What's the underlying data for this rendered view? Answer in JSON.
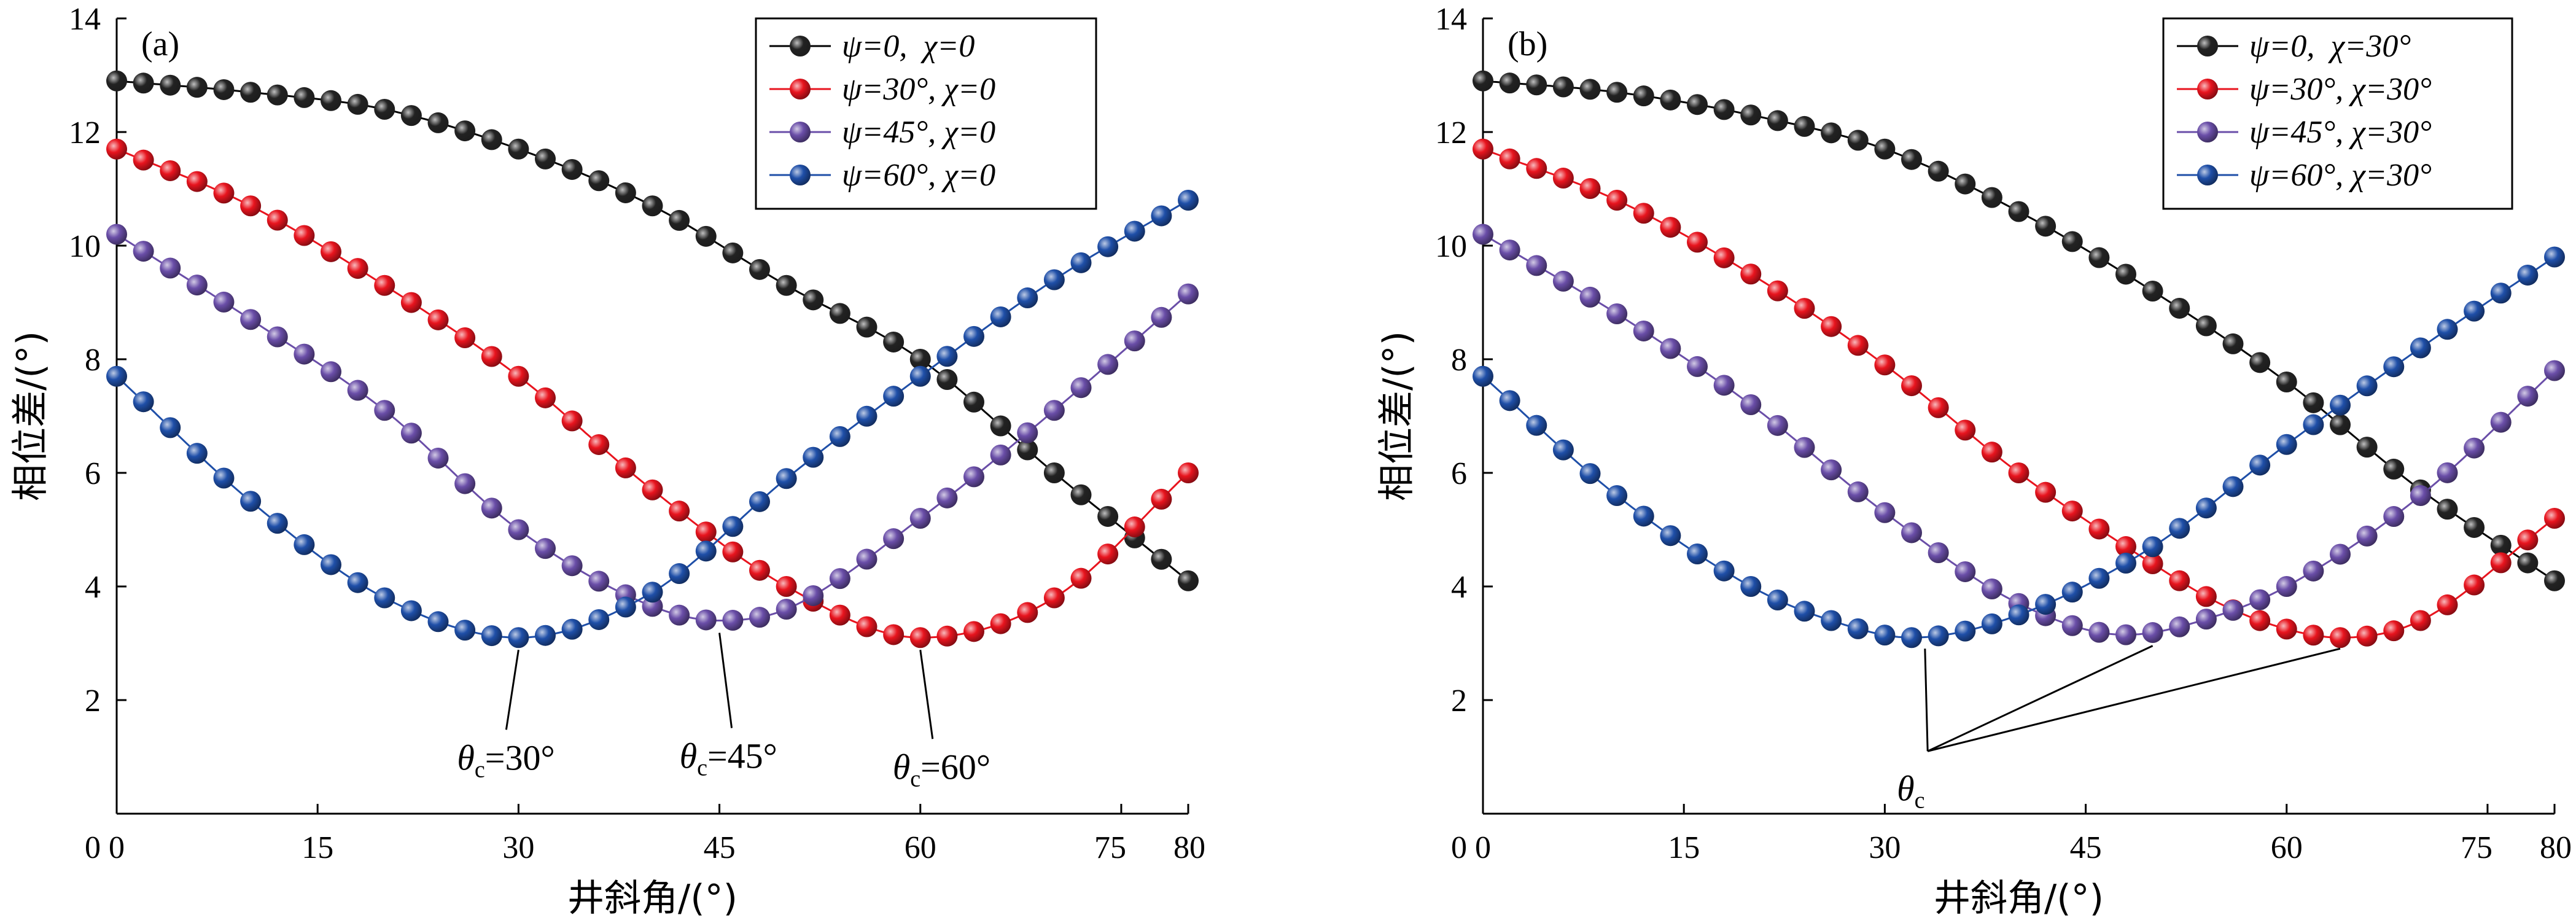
{
  "chart_data": [
    {
      "type": "line",
      "panel_label": "(a)",
      "xlabel": "井斜角/(°)",
      "ylabel": "相位差/(°)",
      "xlim": [
        0,
        80
      ],
      "ylim": [
        0,
        14
      ],
      "xticks": [
        0,
        15,
        30,
        45,
        60,
        75,
        80
      ],
      "yticks": [
        2,
        4,
        6,
        8,
        10,
        12,
        14
      ],
      "grid": false,
      "legend_position": "top-right",
      "markers": "spheres",
      "series": [
        {
          "name": "ψ=0,  χ=0",
          "color": "#000000",
          "x": [
            0,
            10,
            20,
            30,
            40,
            50,
            60,
            70,
            80
          ],
          "y": [
            12.9,
            12.7,
            12.4,
            11.7,
            10.7,
            9.3,
            8.0,
            6.0,
            4.1
          ]
        },
        {
          "name": "ψ=30°, χ=0",
          "color": "#e8141e",
          "x": [
            0,
            10,
            20,
            30,
            40,
            50,
            60,
            70,
            80
          ],
          "y": [
            11.7,
            10.7,
            9.3,
            7.7,
            5.7,
            4.0,
            3.1,
            3.8,
            6.0
          ]
        },
        {
          "name": "ψ=45°, χ=0",
          "color": "#6a4ea8",
          "x": [
            0,
            10,
            20,
            30,
            40,
            45,
            50,
            60,
            70,
            80
          ],
          "y": [
            10.2,
            8.7,
            7.1,
            5.0,
            3.65,
            3.4,
            3.6,
            5.2,
            7.1,
            9.15
          ]
        },
        {
          "name": "ψ=60°, χ=0",
          "color": "#1f4fa8",
          "x": [
            0,
            10,
            20,
            30,
            40,
            50,
            60,
            70,
            80
          ],
          "y": [
            7.7,
            5.5,
            3.8,
            3.1,
            3.9,
            5.9,
            7.7,
            9.4,
            10.8
          ]
        }
      ],
      "annotations": [
        {
          "sub": "c",
          "text_pre": "θ",
          "text_post": "=30°",
          "point": [
            30,
            3.1
          ]
        },
        {
          "sub": "c",
          "text_pre": "θ",
          "text_post": "=45°",
          "point": [
            45,
            3.4
          ]
        },
        {
          "sub": "c",
          "text_pre": "θ",
          "text_post": "=60°",
          "point": [
            60,
            3.1
          ]
        }
      ]
    },
    {
      "type": "line",
      "panel_label": "(b)",
      "xlabel": "井斜角/(°)",
      "ylabel": "相位差/(°)",
      "xlim": [
        0,
        80
      ],
      "ylim": [
        0,
        14
      ],
      "xticks": [
        0,
        15,
        30,
        45,
        60,
        75,
        80
      ],
      "yticks": [
        2,
        4,
        6,
        8,
        10,
        12,
        14
      ],
      "grid": false,
      "legend_position": "top-right",
      "markers": "spheres",
      "series": [
        {
          "name": "ψ=0,  χ=30°",
          "color": "#000000",
          "x": [
            0,
            10,
            20,
            30,
            40,
            50,
            60,
            70,
            80
          ],
          "y": [
            12.9,
            12.7,
            12.3,
            11.7,
            10.6,
            9.2,
            7.6,
            5.7,
            4.1
          ]
        },
        {
          "name": "ψ=30°, χ=30°",
          "color": "#e8141e",
          "x": [
            0,
            10,
            20,
            30,
            40,
            50,
            55,
            60,
            64,
            70,
            80
          ],
          "y": [
            11.7,
            10.8,
            9.5,
            7.9,
            6.0,
            4.4,
            3.7,
            3.25,
            3.1,
            3.4,
            5.2
          ]
        },
        {
          "name": "ψ=45°, χ=30°",
          "color": "#6a4ea8",
          "x": [
            0,
            10,
            20,
            30,
            40,
            48,
            55,
            60,
            70,
            80
          ],
          "y": [
            10.2,
            8.8,
            7.2,
            5.3,
            3.7,
            3.15,
            3.5,
            4.0,
            5.6,
            7.8
          ]
        },
        {
          "name": "ψ=60°, χ=30°",
          "color": "#1f4fa8",
          "x": [
            0,
            10,
            20,
            26,
            32,
            40,
            50,
            60,
            70,
            80
          ],
          "y": [
            7.7,
            5.6,
            4.0,
            3.4,
            3.1,
            3.5,
            4.7,
            6.5,
            8.2,
            9.8
          ]
        }
      ],
      "annotations": [
        {
          "sub": "c",
          "text_pre": "θ",
          "text_post": "",
          "points": [
            [
              33,
              3.1
            ],
            [
              50,
              3.15
            ],
            [
              64,
              3.1
            ]
          ]
        }
      ]
    }
  ]
}
